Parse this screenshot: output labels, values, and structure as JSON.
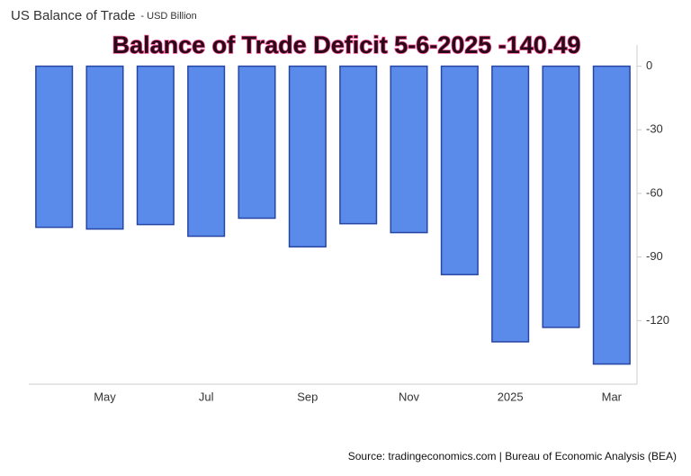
{
  "chart_data": {
    "type": "bar",
    "title": "US Balance of Trade",
    "subtitle": "- USD Billion",
    "annotation": "Balance of Trade Deficit 5-6-2025 -140.49",
    "source": "Source: tradingeconomics.com | Bureau of Economic Analysis (BEA)",
    "categories": [
      null,
      "May",
      null,
      "Jul",
      null,
      "Sep",
      null,
      "Nov",
      null,
      "2025",
      null,
      "Mar"
    ],
    "values": [
      -76,
      -76.8,
      -74.7,
      -80.2,
      -71.7,
      -85.2,
      -74.3,
      -78.5,
      -98.3,
      -130,
      -123.2,
      -140.49
    ],
    "color": "#5b8bea",
    "edge_color": "#2746a3",
    "ylim": [
      -150,
      10
    ],
    "yticks": [
      0,
      -30,
      -60,
      -90,
      -120
    ],
    "grid": false
  }
}
